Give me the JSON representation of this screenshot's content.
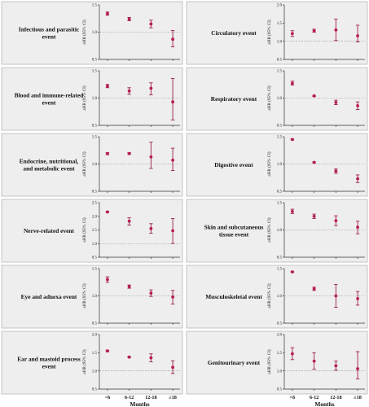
{
  "colors": {
    "marker": "#b81d4d",
    "error_bar": "#9c1f45",
    "panel_background": "#eeeeee",
    "reference_line": "#999999"
  },
  "x_axis": {
    "categories": [
      "<6",
      "6-12",
      "12-18",
      "≥18"
    ],
    "title": "Months"
  },
  "chart_data": [
    {
      "type": "scatter",
      "error_bars": true,
      "title": "Infectious and parasitic event",
      "ylabel": "aHR (95% CI)",
      "ylim": [
        0.5,
        1.5
      ],
      "yticks": [
        "0.5",
        "1.0",
        "1.5"
      ],
      "reference": 1.0,
      "grid": false,
      "categories": [
        "<6",
        "6-12",
        "12-18",
        "≥18"
      ],
      "series": [
        {
          "values": [
            1.34,
            1.24,
            1.15,
            0.87
          ],
          "lower": [
            1.31,
            1.21,
            1.08,
            0.73
          ],
          "upper": [
            1.37,
            1.27,
            1.22,
            1.03
          ]
        }
      ]
    },
    {
      "type": "scatter",
      "error_bars": true,
      "title": "Circulatory event",
      "ylabel": "aHR (95% CI)",
      "ylim": [
        0.5,
        2.0
      ],
      "yticks": [
        "0.5",
        "1.0",
        "1.5",
        "2.0"
      ],
      "reference": 1.0,
      "grid": false,
      "categories": [
        "<6",
        "6-12",
        "12-18",
        "≥18"
      ],
      "series": [
        {
          "values": [
            1.21,
            1.29,
            1.31,
            1.15
          ],
          "lower": [
            1.13,
            1.25,
            1.02,
            0.98
          ],
          "upper": [
            1.29,
            1.33,
            1.61,
            1.44
          ]
        }
      ]
    },
    {
      "type": "scatter",
      "error_bars": true,
      "title": "Blood and immune-related event",
      "ylabel": "aHR (95% CI)",
      "ylim": [
        0.5,
        1.5
      ],
      "yticks": [
        "0.5",
        "1.0",
        "1.5"
      ],
      "reference": 1.0,
      "grid": false,
      "categories": [
        "<6",
        "6-12",
        "12-18",
        "≥18"
      ],
      "series": [
        {
          "values": [
            1.22,
            1.13,
            1.18,
            0.93
          ],
          "lower": [
            1.19,
            1.07,
            1.06,
            0.6
          ],
          "upper": [
            1.25,
            1.19,
            1.28,
            1.36
          ]
        }
      ]
    },
    {
      "type": "scatter",
      "error_bars": true,
      "title": "Respiratory event",
      "ylabel": "aHR (95% CI)",
      "ylim": [
        0.5,
        1.5
      ],
      "yticks": [
        "0.5",
        "1.0",
        "1.5"
      ],
      "reference": 1.0,
      "grid": false,
      "categories": [
        "<6",
        "6-12",
        "12-18",
        "≥18"
      ],
      "series": [
        {
          "values": [
            1.27,
            1.04,
            0.92,
            0.86
          ],
          "lower": [
            1.24,
            1.03,
            0.88,
            0.79
          ],
          "upper": [
            1.31,
            1.05,
            0.96,
            0.93
          ]
        }
      ]
    },
    {
      "type": "scatter",
      "error_bars": true,
      "title": "Endocrine, nutritional, and metabolic event",
      "ylabel": "aHR (95% CI)",
      "ylim": [
        0.5,
        1.5
      ],
      "yticks": [
        "0.5",
        "1.0",
        "1.5"
      ],
      "reference": 1.0,
      "grid": false,
      "categories": [
        "<6",
        "6-12",
        "12-18",
        "≥18"
      ],
      "series": [
        {
          "values": [
            1.19,
            1.19,
            1.13,
            1.07
          ],
          "lower": [
            1.17,
            1.18,
            0.92,
            0.88
          ],
          "upper": [
            1.21,
            1.21,
            1.4,
            1.29
          ]
        }
      ]
    },
    {
      "type": "scatter",
      "error_bars": true,
      "title": "Digestive event",
      "ylabel": "aHR (95% CI)",
      "ylim": [
        0.5,
        1.5
      ],
      "yticks": [
        "0.5",
        "1.0",
        "1.5"
      ],
      "reference": 1.0,
      "grid": false,
      "categories": [
        "<6",
        "6-12",
        "12-18",
        "≥18"
      ],
      "series": [
        {
          "values": [
            1.45,
            1.03,
            0.87,
            0.73
          ],
          "lower": [
            1.44,
            1.02,
            0.83,
            0.66
          ],
          "upper": [
            1.46,
            1.04,
            0.91,
            0.8
          ]
        }
      ]
    },
    {
      "type": "scatter",
      "error_bars": true,
      "title": "Nerve-related event",
      "ylabel": "aHR (95% CI)",
      "ylim": [
        0.5,
        2.5
      ],
      "yticks": [
        "0.5",
        "1.0",
        "1.5",
        "2.0",
        "2.5"
      ],
      "reference": 1.0,
      "grid": false,
      "categories": [
        "<6",
        "6-12",
        "12-18",
        "≥18"
      ],
      "series": [
        {
          "values": [
            2.16,
            1.82,
            1.55,
            1.47
          ],
          "lower": [
            2.14,
            1.68,
            1.38,
            1.0
          ],
          "upper": [
            2.18,
            1.95,
            1.73,
            1.92
          ]
        }
      ]
    },
    {
      "type": "scatter",
      "error_bars": true,
      "title": "Skin and subcutaneous tissue event",
      "ylabel": "aHR (95% CI)",
      "ylim": [
        0.5,
        1.5
      ],
      "yticks": [
        "0.5",
        "1.0",
        "1.5"
      ],
      "reference": 1.0,
      "grid": false,
      "categories": [
        "<6",
        "6-12",
        "12-18",
        "≥18"
      ],
      "series": [
        {
          "values": [
            1.34,
            1.25,
            1.17,
            1.05
          ],
          "lower": [
            1.3,
            1.21,
            1.08,
            0.93
          ],
          "upper": [
            1.38,
            1.29,
            1.26,
            1.16
          ]
        }
      ]
    },
    {
      "type": "scatter",
      "error_bars": true,
      "title": "Eye and adnexa event",
      "ylabel": "aHR (95% CI)",
      "ylim": [
        0.5,
        1.5
      ],
      "yticks": [
        "0.5",
        "1.0",
        "1.5"
      ],
      "reference": 1.0,
      "grid": false,
      "categories": [
        "<6",
        "6-12",
        "12-18",
        "≥18"
      ],
      "series": [
        {
          "values": [
            1.3,
            1.17,
            1.05,
            0.98
          ],
          "lower": [
            1.25,
            1.14,
            0.99,
            0.85
          ],
          "upper": [
            1.35,
            1.2,
            1.11,
            1.1
          ]
        }
      ]
    },
    {
      "type": "scatter",
      "error_bars": true,
      "title": "Musculoskeletal event",
      "ylabel": "aHR (95% CI)",
      "ylim": [
        0.5,
        1.5
      ],
      "yticks": [
        "0.5",
        "1.0",
        "1.5"
      ],
      "reference": 1.0,
      "grid": false,
      "categories": [
        "<6",
        "6-12",
        "12-18",
        "≥18"
      ],
      "series": [
        {
          "values": [
            1.44,
            1.13,
            1.0,
            0.95
          ],
          "lower": [
            1.43,
            1.1,
            0.79,
            0.83
          ],
          "upper": [
            1.45,
            1.16,
            1.21,
            1.08
          ]
        }
      ]
    },
    {
      "type": "scatter",
      "error_bars": true,
      "title": "Ear and mastoid process event",
      "ylabel": "aHR (95% CI)",
      "ylim": [
        0.5,
        2.0
      ],
      "yticks": [
        "0.5",
        "1.0",
        "1.5",
        "2.0"
      ],
      "reference": 1.0,
      "grid": false,
      "categories": [
        "<6",
        "6-12",
        "12-18",
        "≥18"
      ],
      "series": [
        {
          "values": [
            1.55,
            1.38,
            1.36,
            1.1
          ],
          "lower": [
            1.53,
            1.37,
            1.25,
            0.93
          ],
          "upper": [
            1.57,
            1.39,
            1.47,
            1.28
          ]
        }
      ]
    },
    {
      "type": "scatter",
      "error_bars": true,
      "title": "Genitourinary event",
      "ylabel": "aHR (95% CI)",
      "ylim": [
        0.5,
        2.0
      ],
      "yticks": [
        "0.5",
        "1.0",
        "1.5",
        "2.0"
      ],
      "reference": 1.0,
      "grid": false,
      "categories": [
        "<6",
        "6-12",
        "12-18",
        "≥18"
      ],
      "series": [
        {
          "values": [
            1.47,
            1.27,
            1.14,
            1.06
          ],
          "lower": [
            1.31,
            1.05,
            1.02,
            0.78
          ],
          "upper": [
            1.64,
            1.5,
            1.27,
            1.53
          ]
        }
      ]
    }
  ]
}
